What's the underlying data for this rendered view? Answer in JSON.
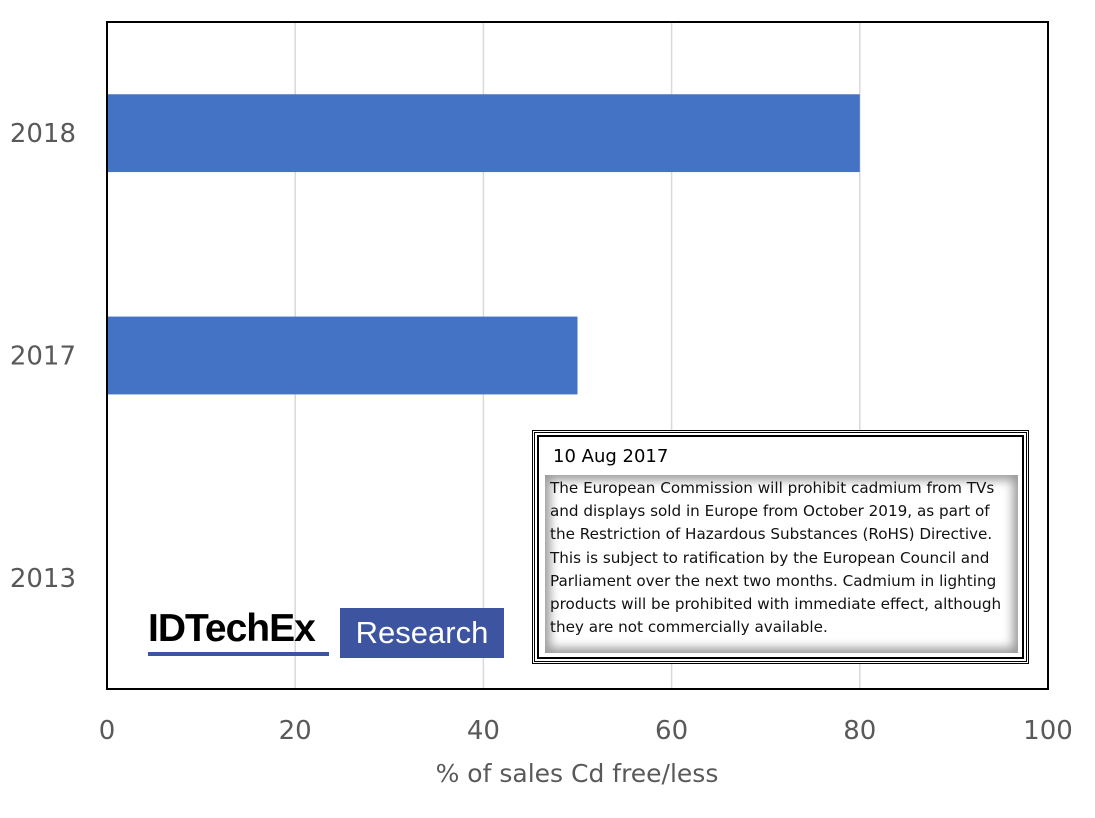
{
  "chart_data": {
    "type": "bar",
    "orientation": "horizontal",
    "categories": [
      "2018",
      "2017",
      "2013"
    ],
    "values": [
      80,
      50,
      0
    ],
    "title": "",
    "xlabel": "% of sales Cd free/less",
    "ylabel": "",
    "xlim": [
      0,
      100
    ],
    "xticks": [
      "0",
      "20",
      "40",
      "60",
      "80",
      "100"
    ],
    "grid": "vertical",
    "bar_color": "#4472C4"
  },
  "annotation": {
    "date": "10 Aug 2017",
    "text": "The European Commission will prohibit cadmium from TVs and displays sold in Europe from October 2019, as part of the Restriction of Hazardous Substances (RoHS) Directive. This is subject to ratification by the European Council and Parliament over the next two months. Cadmium in lighting products will be prohibited with immediate effect, although they are not commercially available."
  },
  "logo": {
    "brand": "IDTechEx",
    "tag": "Research",
    "color": "#3d55a0"
  }
}
